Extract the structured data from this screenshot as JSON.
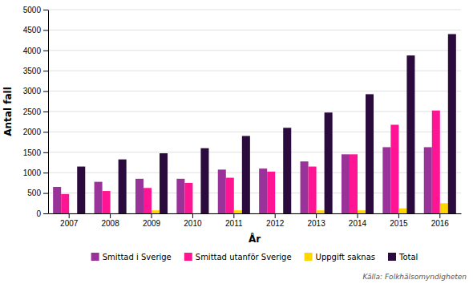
{
  "chart_data": {
    "type": "bar",
    "xlabel": "År",
    "ylabel": "Antal fall",
    "categories": [
      "2007",
      "2008",
      "2009",
      "2010",
      "2011",
      "2012",
      "2013",
      "2014",
      "2015",
      "2016"
    ],
    "series": [
      {
        "name": "Smittad i Sverige",
        "color": "#993399",
        "values": [
          650,
          775,
          850,
          850,
          1075,
          1100,
          1275,
          1450,
          1625,
          1625
        ]
      },
      {
        "name": "Smittad utanför Sverige",
        "color": "#FF1493",
        "values": [
          475,
          550,
          625,
          750,
          875,
          1025,
          1150,
          1450,
          2175,
          2525
        ]
      },
      {
        "name": "Uppgift saknas",
        "color": "#FFD700",
        "values": [
          0,
          0,
          75,
          0,
          75,
          0,
          75,
          75,
          125,
          250
        ]
      },
      {
        "name": "Total",
        "color": "#2B0A3D",
        "values": [
          1150,
          1325,
          1475,
          1600,
          1900,
          2100,
          2475,
          2925,
          3875,
          4400
        ]
      }
    ],
    "ylim": [
      0,
      5000
    ],
    "yticks": [
      0,
      500,
      1000,
      1500,
      2000,
      2500,
      3000,
      3500,
      4000,
      4500,
      5000
    ],
    "grid": true,
    "legend": "bottom",
    "annotations": [
      "Källa: Folkhälsomyndigheten"
    ]
  }
}
